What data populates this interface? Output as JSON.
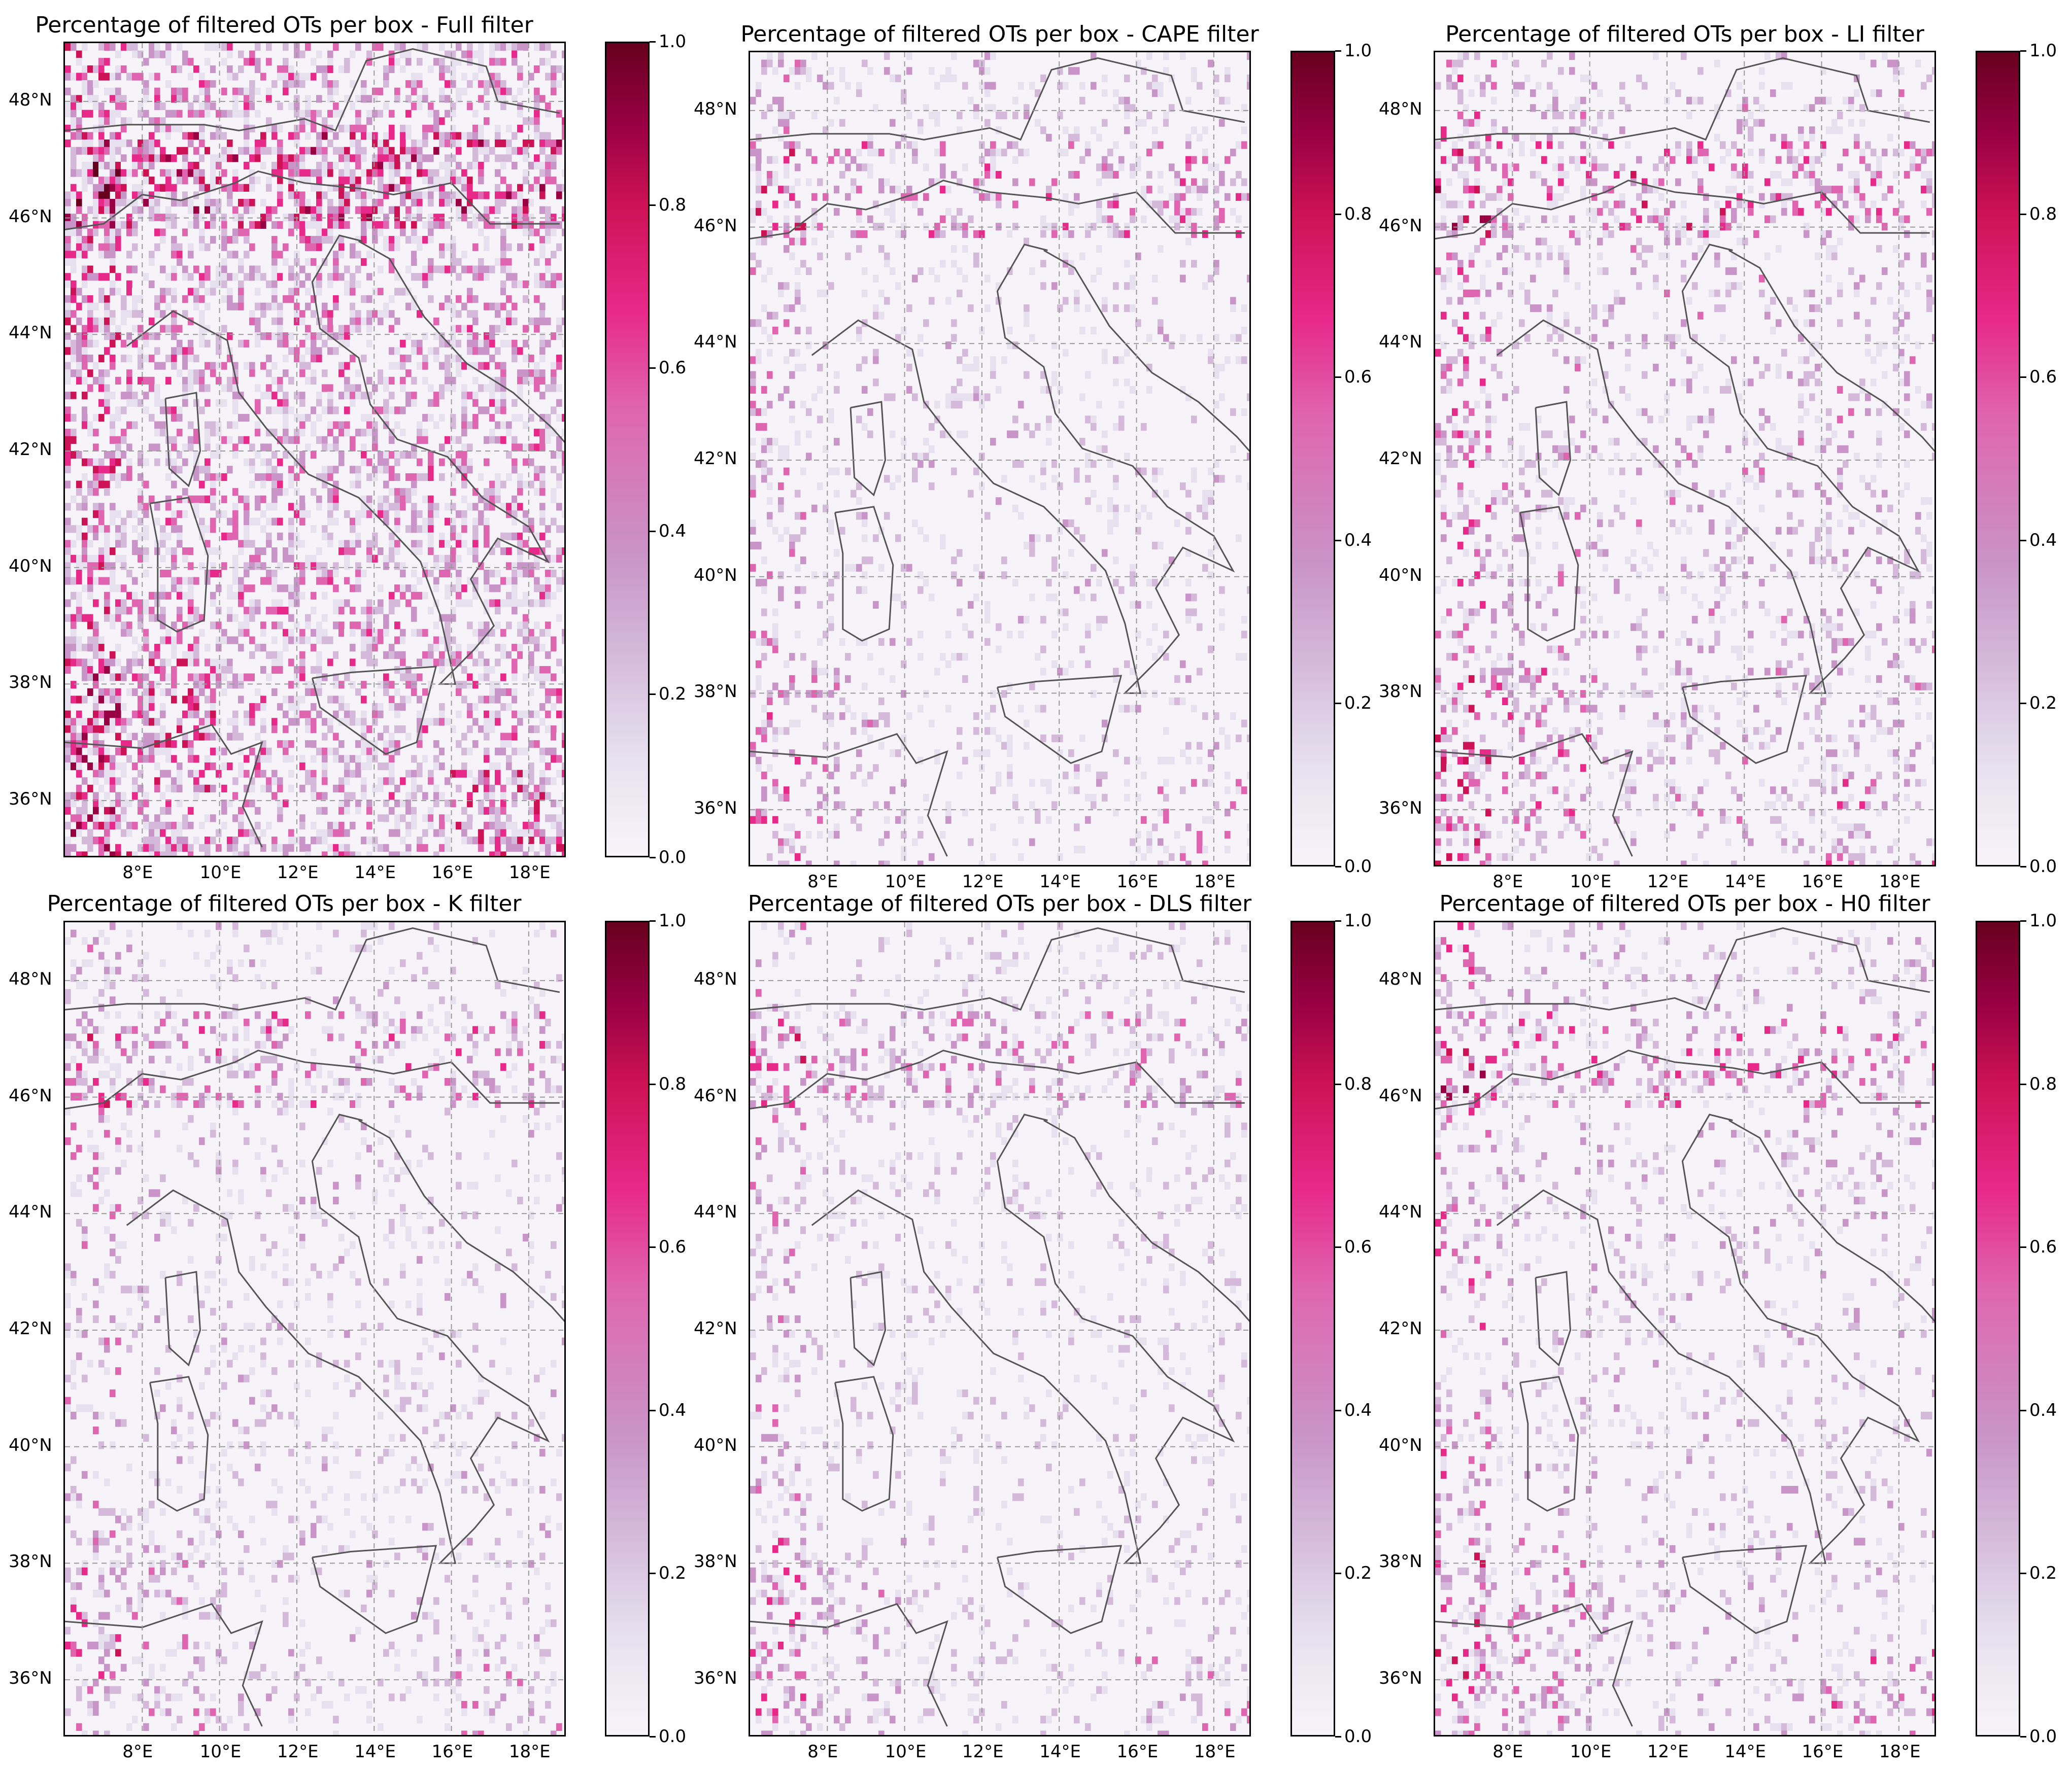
{
  "colorscale": [
    "#f7f4f9",
    "#e7e1ef",
    "#d4b9da",
    "#c994c7",
    "#df65b0",
    "#e7298a",
    "#ce1256",
    "#980043",
    "#67001f"
  ],
  "lon_ticks": [
    "8°E",
    "10°E",
    "12°E",
    "14°E",
    "16°E",
    "18°E"
  ],
  "lat_ticks": [
    "48°N",
    "46°N",
    "44°N",
    "42°N",
    "40°N",
    "38°N",
    "36°N"
  ],
  "colorbar_ticks": [
    "1.0",
    "0.8",
    "0.6",
    "0.4",
    "0.2",
    "0.0"
  ],
  "panels": [
    {
      "title": "Percentage of filtered OTs per box - Full filter",
      "density": 0.55,
      "hot": 0.6
    },
    {
      "title": "Percentage of filtered OTs per box - CAPE filter",
      "density": 0.18,
      "hot": 0.35
    },
    {
      "title": "Percentage of filtered OTs per box - LI filter",
      "density": 0.22,
      "hot": 0.45
    },
    {
      "title": "Percentage of filtered OTs per box - K filter",
      "density": 0.18,
      "hot": 0.35
    },
    {
      "title": "Percentage of filtered OTs per box - DLS filter",
      "density": 0.15,
      "hot": 0.3
    },
    {
      "title": "Percentage of filtered OTs per box - H0 filter",
      "density": 0.17,
      "hot": 0.4
    }
  ],
  "chart_data": {
    "type": "heatmap",
    "extent": {
      "lon": [
        6,
        19
      ],
      "lat": [
        35,
        49
      ]
    },
    "colorbar_range": [
      0.0,
      1.0
    ],
    "grid": true
  }
}
